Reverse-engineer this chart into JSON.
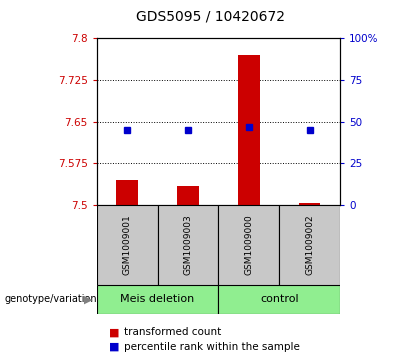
{
  "title": "GDS5095 / 10420672",
  "samples": [
    "GSM1009001",
    "GSM1009003",
    "GSM1009000",
    "GSM1009002"
  ],
  "groups": [
    "Meis deletion",
    "Meis deletion",
    "control",
    "control"
  ],
  "red_values": [
    7.545,
    7.535,
    7.77,
    7.503
  ],
  "blue_values": [
    45.0,
    45.0,
    47.0,
    45.0
  ],
  "ylim_left": [
    7.5,
    7.8
  ],
  "ylim_right": [
    0,
    100
  ],
  "yticks_left": [
    7.5,
    7.575,
    7.65,
    7.725,
    7.8
  ],
  "ytick_labels_left": [
    "7.5",
    "7.575",
    "7.65",
    "7.725",
    "7.8"
  ],
  "yticks_right": [
    0,
    25,
    50,
    75,
    100
  ],
  "ytick_labels_right": [
    "0",
    "25",
    "50",
    "75",
    "100%"
  ],
  "grid_ticks": [
    7.575,
    7.65,
    7.725
  ],
  "bar_base": 7.5,
  "bar_width": 0.35,
  "red_color": "#cc0000",
  "blue_color": "#0000cc",
  "legend_red_label": "transformed count",
  "legend_blue_label": "percentile rank within the sample",
  "genotype_label": "genotype/variation",
  "group_info": [
    {
      "label": "Meis deletion",
      "indices": [
        0,
        1
      ],
      "color": "#90EE90"
    },
    {
      "label": "control",
      "indices": [
        2,
        3
      ],
      "color": "#90EE90"
    }
  ],
  "title_fontsize": 10,
  "tick_label_fontsize": 7.5,
  "sample_fontsize": 6.5,
  "legend_fontsize": 7.5,
  "group_fontsize": 8
}
